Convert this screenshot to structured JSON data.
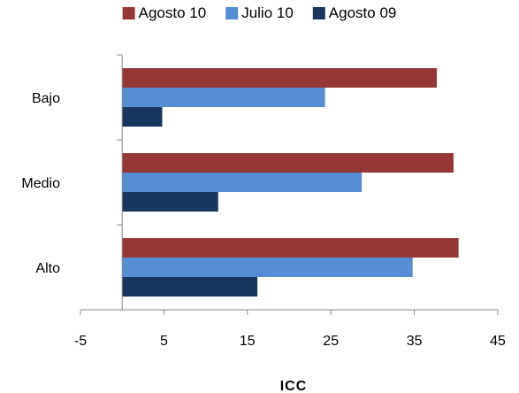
{
  "chart_data": {
    "type": "bar",
    "orientation": "horizontal",
    "categories": [
      "Bajo",
      "Medio",
      "Alto"
    ],
    "series": [
      {
        "name": "Agosto 10",
        "color": "#953735",
        "values": [
          37.7,
          39.7,
          40.3
        ]
      },
      {
        "name": "Julio 10",
        "color": "#558ED5",
        "values": [
          24.3,
          28.7,
          34.8
        ]
      },
      {
        "name": "Agosto 09",
        "color": "#17375E",
        "values": [
          4.8,
          11.5,
          16.2
        ]
      }
    ],
    "xlabel": "ICC",
    "xlim": [
      -5,
      45
    ],
    "xticks": [
      -5,
      5,
      15,
      25,
      35,
      45
    ],
    "legend": "top",
    "grid": false
  }
}
